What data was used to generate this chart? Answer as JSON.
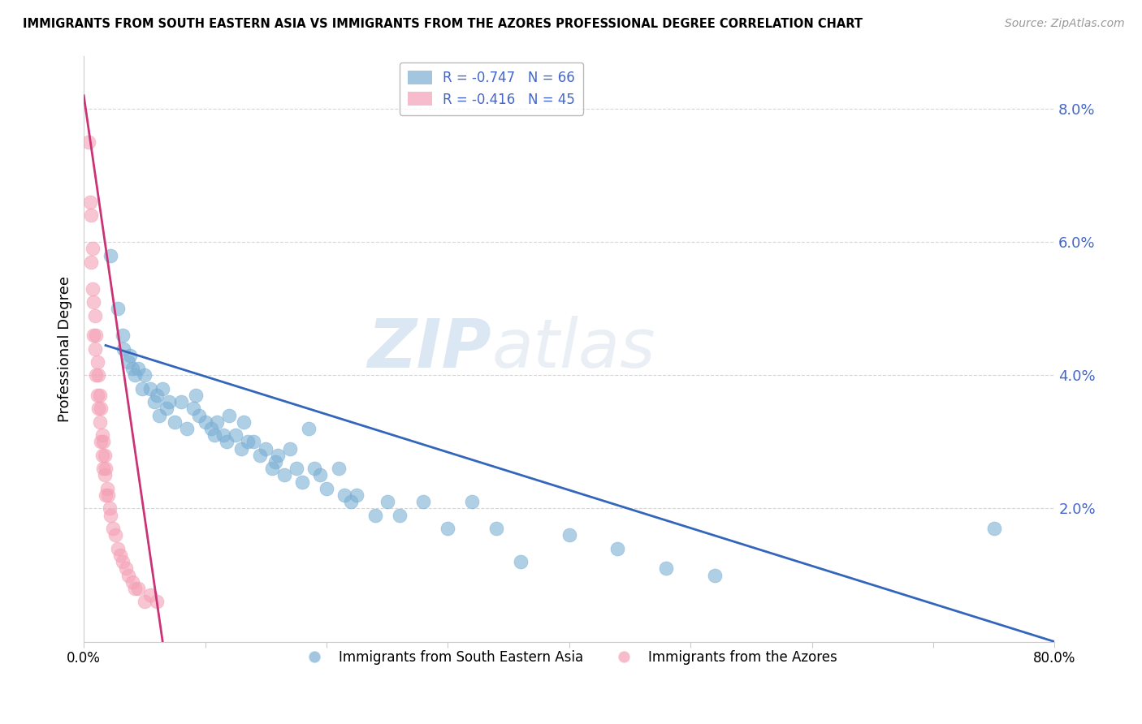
{
  "title": "IMMIGRANTS FROM SOUTH EASTERN ASIA VS IMMIGRANTS FROM THE AZORES PROFESSIONAL DEGREE CORRELATION CHART",
  "source": "Source: ZipAtlas.com",
  "ylabel": "Professional Degree",
  "y_ticks": [
    0.0,
    0.02,
    0.04,
    0.06,
    0.08
  ],
  "y_tick_labels": [
    "",
    "2.0%",
    "4.0%",
    "6.0%",
    "8.0%"
  ],
  "xlim": [
    0.0,
    0.8
  ],
  "ylim": [
    0.0,
    0.088
  ],
  "legend_blue_r": "R = -0.747",
  "legend_blue_n": "N = 66",
  "legend_pink_r": "R = -0.416",
  "legend_pink_n": "N = 45",
  "blue_color": "#7BAFD4",
  "pink_color": "#F4A0B5",
  "blue_line_color": "#3366BB",
  "pink_line_color": "#CC3377",
  "watermark_zip": "ZIP",
  "watermark_atlas": "atlas",
  "blue_scatter_x": [
    0.022,
    0.028,
    0.032,
    0.033,
    0.037,
    0.038,
    0.04,
    0.042,
    0.045,
    0.048,
    0.05,
    0.055,
    0.058,
    0.06,
    0.062,
    0.065,
    0.068,
    0.07,
    0.075,
    0.08,
    0.085,
    0.09,
    0.092,
    0.095,
    0.1,
    0.105,
    0.108,
    0.11,
    0.115,
    0.118,
    0.12,
    0.125,
    0.13,
    0.132,
    0.135,
    0.14,
    0.145,
    0.15,
    0.155,
    0.158,
    0.16,
    0.165,
    0.17,
    0.175,
    0.18,
    0.185,
    0.19,
    0.195,
    0.2,
    0.21,
    0.215,
    0.22,
    0.225,
    0.24,
    0.25,
    0.26,
    0.28,
    0.3,
    0.32,
    0.34,
    0.36,
    0.4,
    0.44,
    0.48,
    0.52,
    0.75
  ],
  "blue_scatter_y": [
    0.058,
    0.05,
    0.046,
    0.044,
    0.042,
    0.043,
    0.041,
    0.04,
    0.041,
    0.038,
    0.04,
    0.038,
    0.036,
    0.037,
    0.034,
    0.038,
    0.035,
    0.036,
    0.033,
    0.036,
    0.032,
    0.035,
    0.037,
    0.034,
    0.033,
    0.032,
    0.031,
    0.033,
    0.031,
    0.03,
    0.034,
    0.031,
    0.029,
    0.033,
    0.03,
    0.03,
    0.028,
    0.029,
    0.026,
    0.027,
    0.028,
    0.025,
    0.029,
    0.026,
    0.024,
    0.032,
    0.026,
    0.025,
    0.023,
    0.026,
    0.022,
    0.021,
    0.022,
    0.019,
    0.021,
    0.019,
    0.021,
    0.017,
    0.021,
    0.017,
    0.012,
    0.016,
    0.014,
    0.011,
    0.01,
    0.017
  ],
  "pink_scatter_x": [
    0.004,
    0.005,
    0.006,
    0.006,
    0.007,
    0.007,
    0.008,
    0.008,
    0.009,
    0.009,
    0.01,
    0.01,
    0.011,
    0.011,
    0.012,
    0.012,
    0.013,
    0.013,
    0.014,
    0.014,
    0.015,
    0.015,
    0.016,
    0.016,
    0.017,
    0.017,
    0.018,
    0.018,
    0.019,
    0.02,
    0.021,
    0.022,
    0.024,
    0.026,
    0.028,
    0.03,
    0.032,
    0.035,
    0.037,
    0.04,
    0.042,
    0.045,
    0.05,
    0.055,
    0.06
  ],
  "pink_scatter_y": [
    0.075,
    0.066,
    0.064,
    0.057,
    0.059,
    0.053,
    0.051,
    0.046,
    0.049,
    0.044,
    0.046,
    0.04,
    0.042,
    0.037,
    0.04,
    0.035,
    0.037,
    0.033,
    0.035,
    0.03,
    0.031,
    0.028,
    0.03,
    0.026,
    0.028,
    0.025,
    0.026,
    0.022,
    0.023,
    0.022,
    0.02,
    0.019,
    0.017,
    0.016,
    0.014,
    0.013,
    0.012,
    0.011,
    0.01,
    0.009,
    0.008,
    0.008,
    0.006,
    0.007,
    0.006
  ],
  "blue_line_x": [
    0.018,
    0.8
  ],
  "blue_line_y": [
    0.0445,
    0.0
  ],
  "pink_line_x": [
    0.0,
    0.065
  ],
  "pink_line_y": [
    0.082,
    0.0
  ]
}
